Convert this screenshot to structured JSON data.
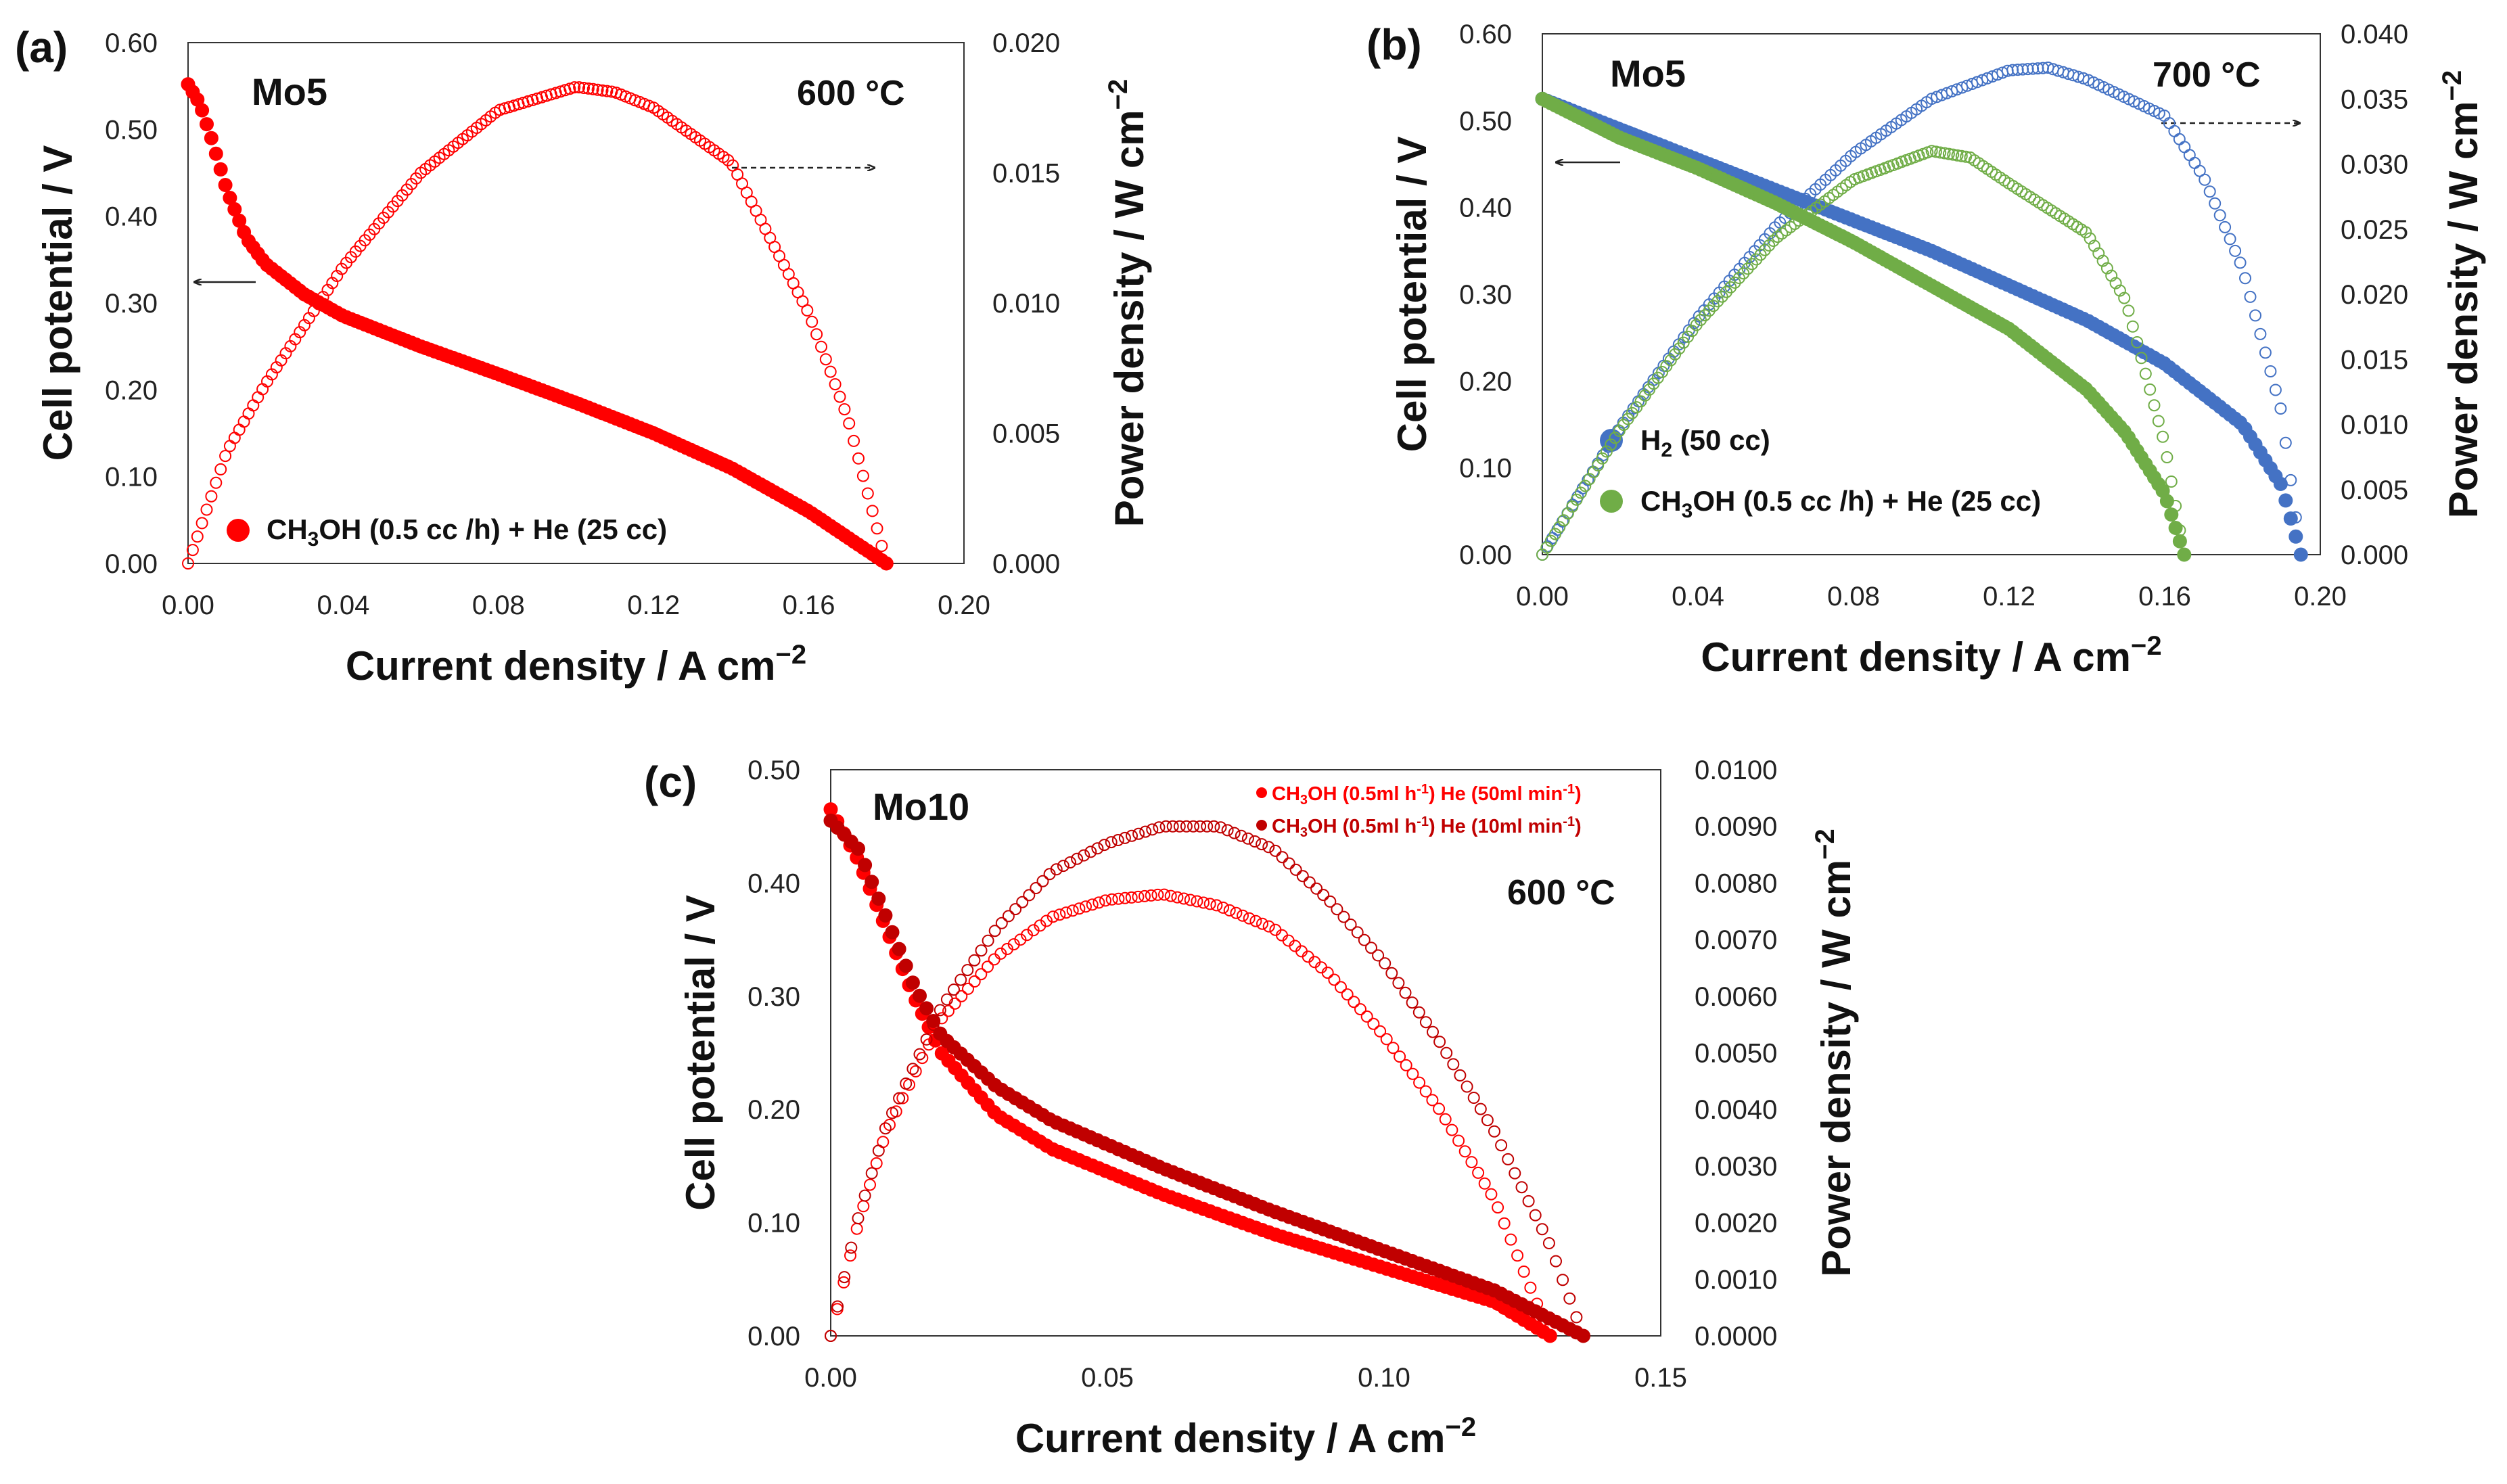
{
  "chart_data": [
    {
      "panel": "(a)",
      "type": "scatter",
      "sample": "Mo5",
      "temperature": "600 °C",
      "xlabel": "Current density / A cm",
      "xlabel_sup": "−2",
      "ylabel": "Cell potential / V",
      "y2label": "Power density / W cm",
      "y2label_sup": "−2",
      "xlim": [
        0,
        0.2
      ],
      "ylim": [
        0,
        0.6
      ],
      "y2lim": [
        0,
        0.02
      ],
      "xticks": [
        "0.00",
        "0.04",
        "0.08",
        "0.12",
        "0.16",
        "0.20"
      ],
      "yticks": [
        "0.00",
        "0.10",
        "0.20",
        "0.30",
        "0.40",
        "0.50",
        "0.60"
      ],
      "y2ticks": [
        "0.000",
        "0.005",
        "0.010",
        "0.015",
        "0.020"
      ],
      "series": [
        {
          "name": "CH₃OH (0.5 cc /h) + He (25 cc)",
          "legend_parts": [
            "CH",
            "3",
            "OH (0.5 cc /h) + He (25 cc)"
          ],
          "color": "#ff0000",
          "voltage_curve": [
            [
              0,
              0.552
            ],
            [
              0.003,
              0.53
            ],
            [
              0.006,
              0.49
            ],
            [
              0.01,
              0.43
            ],
            [
              0.015,
              0.375
            ],
            [
              0.02,
              0.345
            ],
            [
              0.03,
              0.31
            ],
            [
              0.04,
              0.285
            ],
            [
              0.06,
              0.25
            ],
            [
              0.08,
              0.218
            ],
            [
              0.1,
              0.185
            ],
            [
              0.12,
              0.15
            ],
            [
              0.14,
              0.11
            ],
            [
              0.16,
              0.06
            ],
            [
              0.18,
              0.0
            ]
          ],
          "power_curve": [
            [
              0,
              0.0
            ],
            [
              0.01,
              0.0043
            ],
            [
              0.02,
              0.0069
            ],
            [
              0.04,
              0.0114
            ],
            [
              0.06,
              0.015
            ],
            [
              0.08,
              0.0174
            ],
            [
              0.1,
              0.0183
            ],
            [
              0.11,
              0.0181
            ],
            [
              0.12,
              0.0175
            ],
            [
              0.14,
              0.0154
            ],
            [
              0.16,
              0.0096
            ],
            [
              0.17,
              0.0056
            ],
            [
              0.18,
              0.0
            ]
          ]
        }
      ]
    },
    {
      "panel": "(b)",
      "type": "scatter",
      "sample": "Mo5",
      "temperature": "700 °C",
      "xlabel": "Current density / A cm",
      "xlabel_sup": "−2",
      "ylabel": "Cell potential / V",
      "y2label": "Power density / W cm",
      "y2label_sup": "−2",
      "xlim": [
        0,
        0.2
      ],
      "ylim": [
        0,
        0.6
      ],
      "y2lim": [
        0,
        0.04
      ],
      "xticks": [
        "0.00",
        "0.04",
        "0.08",
        "0.12",
        "0.16",
        "0.20"
      ],
      "yticks": [
        "0.00",
        "0.10",
        "0.20",
        "0.30",
        "0.40",
        "0.50",
        "0.60"
      ],
      "y2ticks": [
        "0.000",
        "0.005",
        "0.010",
        "0.015",
        "0.020",
        "0.025",
        "0.030",
        "0.035",
        "0.040"
      ],
      "series": [
        {
          "name": "H₂ (50 cc)",
          "legend_parts": [
            "H",
            "2",
            " (50 cc)"
          ],
          "color": "#4472c4",
          "voltage_curve": [
            [
              0,
              0.525
            ],
            [
              0.02,
              0.49
            ],
            [
              0.04,
              0.455
            ],
            [
              0.06,
              0.42
            ],
            [
              0.08,
              0.385
            ],
            [
              0.1,
              0.35
            ],
            [
              0.12,
              0.31
            ],
            [
              0.14,
              0.27
            ],
            [
              0.16,
              0.22
            ],
            [
              0.18,
              0.15
            ],
            [
              0.19,
              0.08
            ],
            [
              0.195,
              0.0
            ]
          ],
          "power_curve": [
            [
              0,
              0.0
            ],
            [
              0.02,
              0.0098
            ],
            [
              0.04,
              0.0182
            ],
            [
              0.06,
              0.0252
            ],
            [
              0.08,
              0.0308
            ],
            [
              0.1,
              0.035
            ],
            [
              0.12,
              0.0372
            ],
            [
              0.13,
              0.0374
            ],
            [
              0.14,
              0.0365
            ],
            [
              0.16,
              0.0337
            ],
            [
              0.17,
              0.029
            ],
            [
              0.18,
              0.022
            ],
            [
              0.19,
              0.011
            ],
            [
              0.195,
              0.0
            ]
          ]
        },
        {
          "name": "CH₃OH (0.5 cc /h) + He (25 cc)",
          "legend_parts": [
            "CH",
            "3",
            "OH (0.5 cc /h) + He (25 cc)"
          ],
          "color": "#70ad47",
          "voltage_curve": [
            [
              0,
              0.525
            ],
            [
              0.02,
              0.48
            ],
            [
              0.04,
              0.445
            ],
            [
              0.06,
              0.405
            ],
            [
              0.08,
              0.36
            ],
            [
              0.1,
              0.31
            ],
            [
              0.12,
              0.26
            ],
            [
              0.14,
              0.19
            ],
            [
              0.15,
              0.14
            ],
            [
              0.16,
              0.07
            ],
            [
              0.165,
              0.0
            ]
          ],
          "power_curve": [
            [
              0,
              0.0
            ],
            [
              0.02,
              0.0096
            ],
            [
              0.04,
              0.0178
            ],
            [
              0.06,
              0.0243
            ],
            [
              0.08,
              0.0288
            ],
            [
              0.1,
              0.031
            ],
            [
              0.11,
              0.0305
            ],
            [
              0.12,
              0.0285
            ],
            [
              0.14,
              0.0247
            ],
            [
              0.15,
              0.0195
            ],
            [
              0.16,
              0.0085
            ],
            [
              0.165,
              0.0
            ]
          ]
        }
      ]
    },
    {
      "panel": "(c)",
      "type": "scatter",
      "sample": "Mo10",
      "temperature": "600 °C",
      "xlabel": "Current density / A cm",
      "xlabel_sup": "−2",
      "ylabel": "Cell potential / V",
      "y2label": "Power density / W cm",
      "y2label_sup": "−2",
      "xlim": [
        0,
        0.15
      ],
      "ylim": [
        0,
        0.5
      ],
      "y2lim": [
        0,
        0.01
      ],
      "xticks": [
        "0.00",
        "0.05",
        "0.10",
        "0.15"
      ],
      "yticks": [
        "0.00",
        "0.10",
        "0.20",
        "0.30",
        "0.40",
        "0.50"
      ],
      "y2ticks": [
        "0.0000",
        "0.0010",
        "0.0020",
        "0.0030",
        "0.0040",
        "0.0050",
        "0.0060",
        "0.0070",
        "0.0080",
        "0.0090",
        "0.0100"
      ],
      "series": [
        {
          "name": "CH₃OH (0.5ml h⁻¹) He (50ml min⁻¹)",
          "legend_parts": [
            "CH",
            "3",
            "OH (0.5ml h",
            "-1",
            ") He (50ml min",
            "-1",
            ")"
          ],
          "color": "#ff0000",
          "voltage_curve": [
            [
              0,
              0.465
            ],
            [
              0.005,
              0.42
            ],
            [
              0.01,
              0.36
            ],
            [
              0.015,
              0.3
            ],
            [
              0.02,
              0.25
            ],
            [
              0.03,
              0.195
            ],
            [
              0.04,
              0.165
            ],
            [
              0.06,
              0.125
            ],
            [
              0.08,
              0.09
            ],
            [
              0.1,
              0.06
            ],
            [
              0.12,
              0.03
            ],
            [
              0.13,
              0.0
            ]
          ],
          "power_curve": [
            [
              0,
              0.0
            ],
            [
              0.005,
              0.002
            ],
            [
              0.01,
              0.0036
            ],
            [
              0.02,
              0.0056
            ],
            [
              0.03,
              0.0067
            ],
            [
              0.04,
              0.0074
            ],
            [
              0.05,
              0.0077
            ],
            [
              0.06,
              0.0078
            ],
            [
              0.07,
              0.0076
            ],
            [
              0.08,
              0.0072
            ],
            [
              0.09,
              0.0064
            ],
            [
              0.1,
              0.0053
            ],
            [
              0.11,
              0.004
            ],
            [
              0.12,
              0.0024
            ],
            [
              0.13,
              0.0
            ]
          ]
        },
        {
          "name": "CH₃OH (0.5ml h⁻¹) He (10ml min⁻¹)",
          "legend_parts": [
            "CH",
            "3",
            "OH (0.5ml h",
            "-1",
            ") He (10ml min",
            "-1",
            ")"
          ],
          "color": "#c00000",
          "voltage_curve": [
            [
              0,
              0.455
            ],
            [
              0.005,
              0.43
            ],
            [
              0.01,
              0.37
            ],
            [
              0.015,
              0.31
            ],
            [
              0.02,
              0.265
            ],
            [
              0.03,
              0.22
            ],
            [
              0.04,
              0.19
            ],
            [
              0.06,
              0.148
            ],
            [
              0.08,
              0.11
            ],
            [
              0.1,
              0.075
            ],
            [
              0.12,
              0.04
            ],
            [
              0.136,
              0.0
            ]
          ],
          "power_curve": [
            [
              0,
              0.0
            ],
            [
              0.005,
              0.0021
            ],
            [
              0.01,
              0.0037
            ],
            [
              0.02,
              0.0058
            ],
            [
              0.03,
              0.0072
            ],
            [
              0.04,
              0.0082
            ],
            [
              0.05,
              0.0087
            ],
            [
              0.06,
              0.009
            ],
            [
              0.07,
              0.009
            ],
            [
              0.08,
              0.0086
            ],
            [
              0.09,
              0.0077
            ],
            [
              0.1,
              0.0066
            ],
            [
              0.11,
              0.0052
            ],
            [
              0.12,
              0.0036
            ],
            [
              0.13,
              0.0016
            ],
            [
              0.136,
              0.0
            ]
          ]
        }
      ]
    }
  ]
}
